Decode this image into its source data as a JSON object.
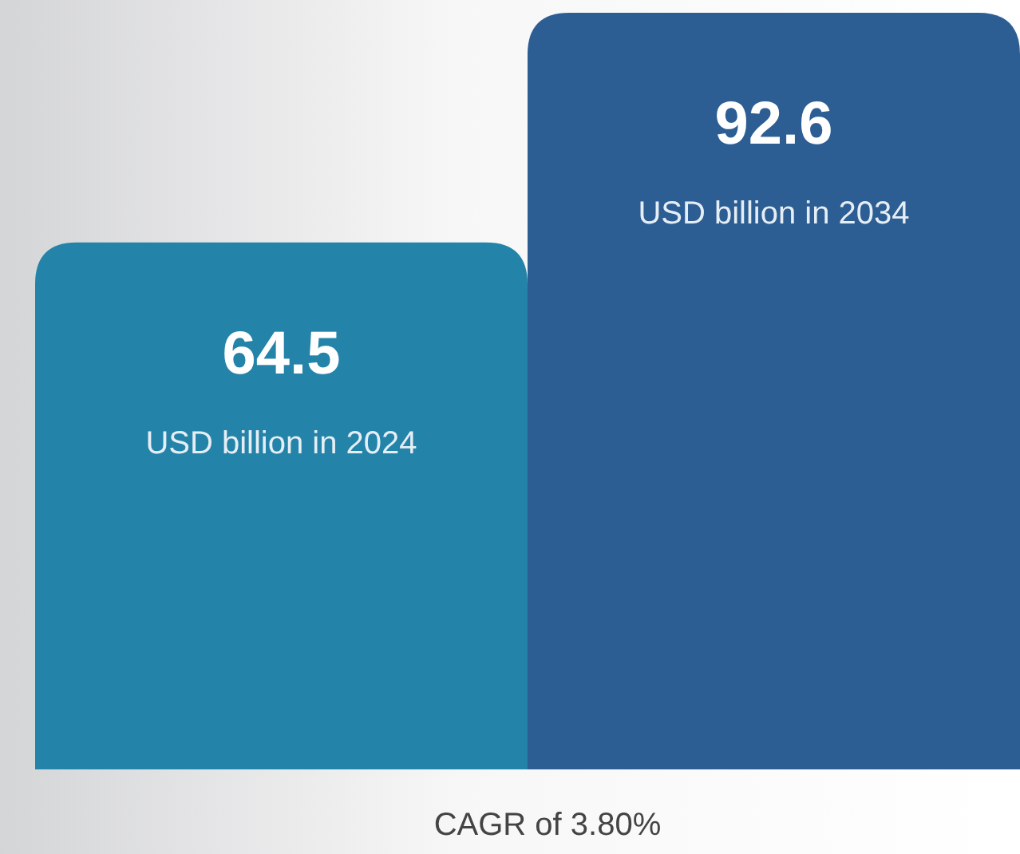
{
  "chart_data": {
    "type": "bar",
    "categories": [
      null,
      null
    ],
    "values": [
      64.5,
      92.6
    ],
    "colors": [
      "#2383a8",
      "#2c5d93"
    ],
    "data_labels": true,
    "annotations": [
      "USD billion in 2024",
      "USD billion in 2034",
      "CAGR of 3.80%"
    ]
  }
}
